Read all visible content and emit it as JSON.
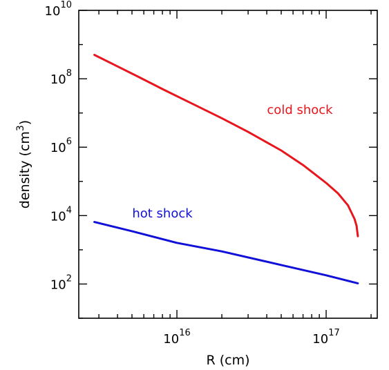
{
  "chart_data": {
    "type": "line",
    "title": "",
    "xlabel": "R (cm)",
    "ylabel_main": "density (cm",
    "ylabel_sup": "3",
    "ylabel_close": ")",
    "xscale": "log",
    "yscale": "log",
    "xlim": [
      2200000000000000.0,
      2.2e+17
    ],
    "ylim": [
      10,
      10000000000.0
    ],
    "x_ticks": [
      {
        "value": 1e+16,
        "base": "10",
        "exp": "16"
      },
      {
        "value": 1e+17,
        "base": "10",
        "exp": "17"
      }
    ],
    "y_ticks": [
      {
        "value": 100,
        "base": "10",
        "exp": "2"
      },
      {
        "value": 10000,
        "base": "10",
        "exp": "4"
      },
      {
        "value": 1000000,
        "base": "10",
        "exp": "6"
      },
      {
        "value": 100000000,
        "base": "10",
        "exp": "8"
      },
      {
        "value": 10000000000,
        "base": "10",
        "exp": "10"
      }
    ],
    "grid": false,
    "series": [
      {
        "name": "cold shock",
        "color": "#e8161c",
        "x": [
          2800000000000000.0,
          4000000000000000.0,
          5500000000000000.0,
          8000000000000000.0,
          1.2e+16,
          2e+16,
          3e+16,
          5e+16,
          7e+16,
          1e+17,
          1.2e+17,
          1.4e+17,
          1.55e+17,
          1.6e+17,
          1.63e+17
        ],
        "y": [
          500000000.0,
          230000000.0,
          115000000.0,
          50000000.0,
          21000000.0,
          7000000.0,
          2800000.0,
          800000.0,
          300000.0,
          90000.0,
          45000.0,
          20000.0,
          8000.0,
          5000.0,
          2500.0
        ]
      },
      {
        "name": "hot shock",
        "color": "#1010d8",
        "x": [
          2800000000000000.0,
          5000000000000000.0,
          1e+16,
          2e+16,
          5e+16,
          1e+17,
          1.63e+17
        ],
        "y": [
          6500,
          3500,
          1600,
          900,
          360,
          180,
          105
        ]
      }
    ]
  }
}
